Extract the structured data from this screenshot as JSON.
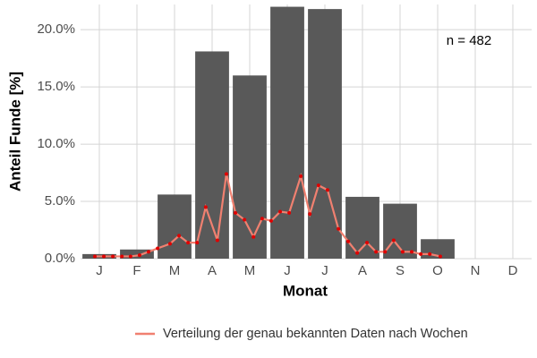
{
  "chart_data": {
    "type": "bar",
    "x_label": "Monat",
    "y_label": "Anteil Funde [%]",
    "annotation": "n = 482",
    "categories": [
      "J",
      "F",
      "M",
      "A",
      "M",
      "J",
      "J",
      "A",
      "S",
      "O",
      "N",
      "D"
    ],
    "values": [
      0.4,
      0.8,
      5.6,
      18.1,
      16.0,
      22.0,
      21.8,
      5.4,
      4.8,
      1.7,
      0,
      0
    ],
    "color": "#595959",
    "ylim": [
      0,
      22.2
    ],
    "yticks": [
      {
        "value": 0,
        "label": "0.0%"
      },
      {
        "value": 5,
        "label": "5.0%"
      },
      {
        "value": 10,
        "label": "10.0%"
      },
      {
        "value": 15,
        "label": "15.0%"
      },
      {
        "value": 20,
        "label": "20.0%"
      }
    ],
    "grid": true,
    "legend_position": "bottom",
    "line": {
      "name": "Verteilung der genau bekannten Daten nach Wochen",
      "color": "#f08070",
      "point_color": "#e00000",
      "x": [
        0.88,
        1.12,
        1.36,
        1.6,
        1.83,
        2.07,
        2.31,
        2.55,
        2.88,
        3.12,
        3.36,
        3.6,
        3.83,
        4.14,
        4.38,
        4.62,
        4.86,
        5.1,
        5.33,
        5.57,
        5.81,
        6.05,
        6.36,
        6.6,
        6.83,
        7.07,
        7.36,
        7.62,
        7.86,
        8.12,
        8.36,
        8.6,
        8.83,
        9.07,
        9.31,
        9.55,
        9.79,
        10.07
      ],
      "values": [
        0.2,
        0.2,
        0.2,
        0.2,
        0.2,
        0.3,
        0.6,
        0.9,
        1.3,
        2.0,
        1.4,
        1.4,
        4.5,
        1.6,
        7.4,
        4.0,
        3.4,
        1.9,
        3.5,
        3.3,
        4.1,
        4.0,
        7.2,
        3.9,
        6.4,
        6.0,
        2.6,
        1.5,
        0.5,
        1.4,
        0.6,
        0.6,
        1.6,
        0.6,
        0.6,
        0.4,
        0.4,
        0.2
      ]
    }
  }
}
